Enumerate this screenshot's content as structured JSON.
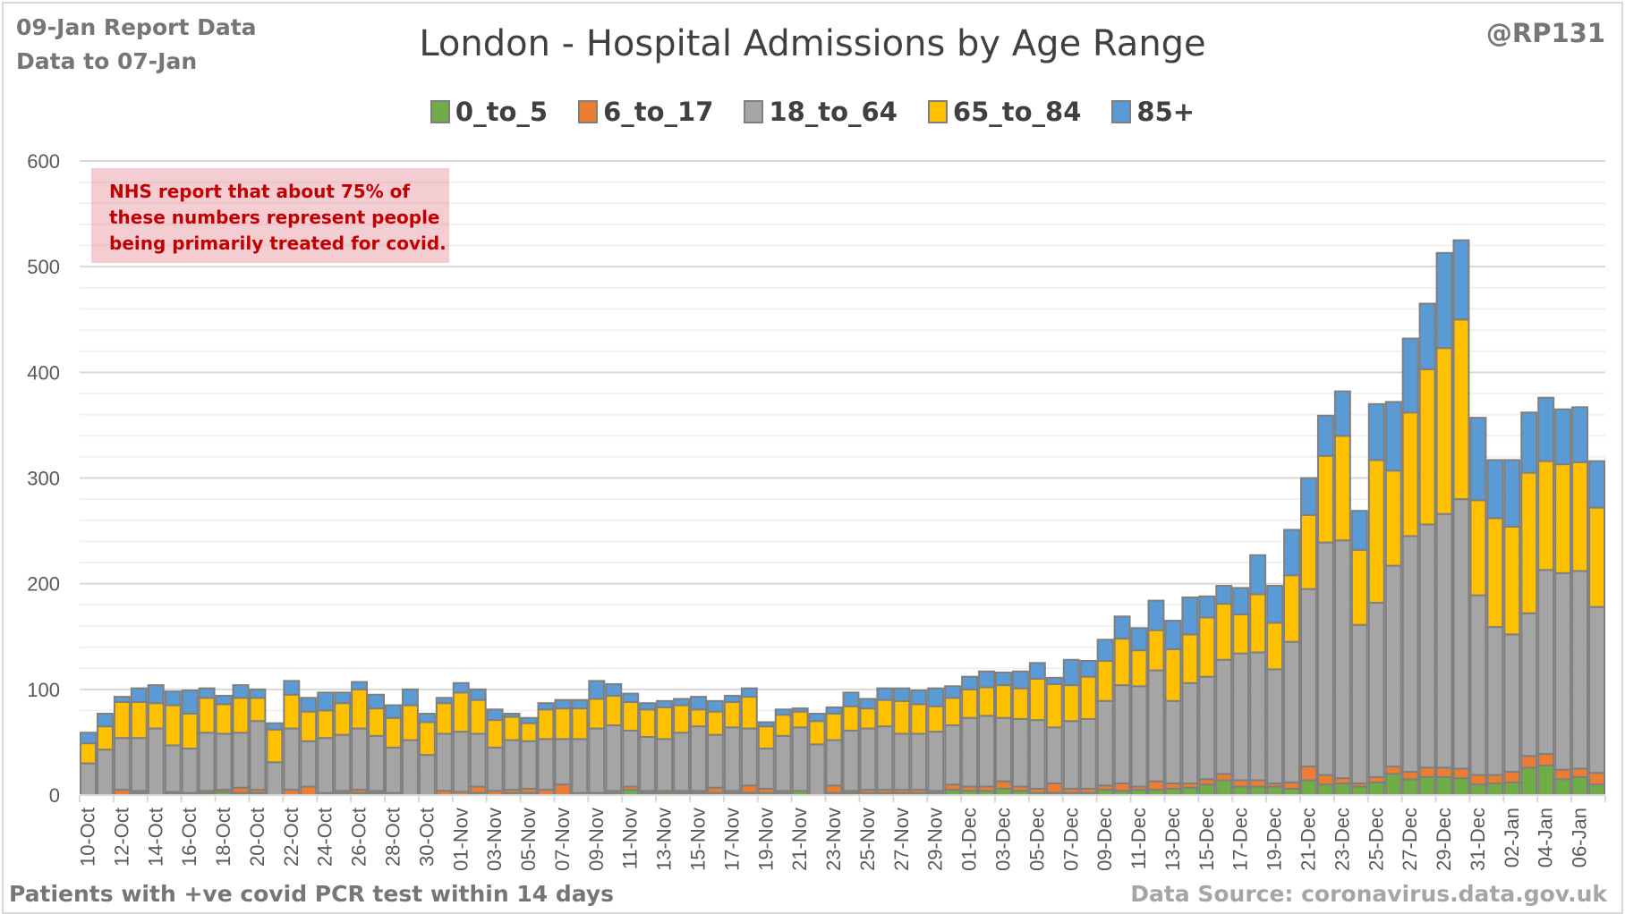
{
  "header": {
    "report_date": "09-Jan Report Data",
    "data_to": "Data to 07-Jan",
    "handle": "@RP131"
  },
  "footer": {
    "left_note": "Patients with  +ve covid PCR test within 14 days",
    "source": "Data Source: coronavirus.data.gov.uk"
  },
  "annotation": "NHS report that about 75% of these numbers represent people being primarily treated for covid.",
  "chart_data": {
    "type": "bar",
    "stacked": true,
    "title": "London - Hospital Admissions by Age Range",
    "xlabel": "",
    "ylabel": "",
    "ylim": [
      0,
      600
    ],
    "yticks": [
      0,
      100,
      200,
      300,
      400,
      500,
      600
    ],
    "grid": true,
    "legend_position": "top",
    "colors": {
      "0_to_5": "#70ad47",
      "6_to_17": "#ed7d31",
      "18_to_64": "#a5a5a5",
      "65_to_84": "#ffc000",
      "85+": "#5b9bd5"
    },
    "categories": [
      "10-Oct",
      "11-Oct",
      "12-Oct",
      "13-Oct",
      "14-Oct",
      "15-Oct",
      "16-Oct",
      "17-Oct",
      "18-Oct",
      "19-Oct",
      "20-Oct",
      "21-Oct",
      "22-Oct",
      "23-Oct",
      "24-Oct",
      "25-Oct",
      "26-Oct",
      "27-Oct",
      "28-Oct",
      "29-Oct",
      "30-Oct",
      "31-Oct",
      "01-Nov",
      "02-Nov",
      "03-Nov",
      "04-Nov",
      "05-Nov",
      "06-Nov",
      "07-Nov",
      "08-Nov",
      "09-Nov",
      "10-Nov",
      "11-Nov",
      "12-Nov",
      "13-Nov",
      "14-Nov",
      "15-Nov",
      "16-Nov",
      "17-Nov",
      "18-Nov",
      "19-Nov",
      "20-Nov",
      "21-Nov",
      "22-Nov",
      "23-Nov",
      "24-Nov",
      "25-Nov",
      "26-Nov",
      "27-Nov",
      "28-Nov",
      "29-Nov",
      "30-Nov",
      "01-Dec",
      "02-Dec",
      "03-Dec",
      "04-Dec",
      "05-Dec",
      "06-Dec",
      "07-Dec",
      "08-Dec",
      "09-Dec",
      "10-Dec",
      "11-Dec",
      "12-Dec",
      "13-Dec",
      "14-Dec",
      "15-Dec",
      "16-Dec",
      "17-Dec",
      "18-Dec",
      "19-Dec",
      "20-Dec",
      "21-Dec",
      "22-Dec",
      "23-Dec",
      "24-Dec",
      "25-Dec",
      "26-Dec",
      "27-Dec",
      "28-Dec",
      "29-Dec",
      "30-Dec",
      "31-Dec",
      "01-Jan",
      "02-Jan",
      "03-Jan",
      "04-Jan",
      "05-Jan",
      "06-Jan",
      "07-Jan"
    ],
    "xtick_labels": [
      "10-Oct",
      "12-Oct",
      "14-Oct",
      "16-Oct",
      "18-Oct",
      "20-Oct",
      "22-Oct",
      "24-Oct",
      "26-Oct",
      "28-Oct",
      "30-Oct",
      "01-Nov",
      "03-Nov",
      "05-Nov",
      "07-Nov",
      "09-Nov",
      "11-Nov",
      "13-Nov",
      "15-Nov",
      "17-Nov",
      "19-Nov",
      "21-Nov",
      "23-Nov",
      "25-Nov",
      "27-Nov",
      "29-Nov",
      "01-Dec",
      "03-Dec",
      "05-Dec",
      "07-Dec",
      "09-Dec",
      "11-Dec",
      "13-Dec",
      "15-Dec",
      "17-Dec",
      "19-Dec",
      "21-Dec",
      "23-Dec",
      "25-Dec",
      "27-Dec",
      "29-Dec",
      "31-Dec",
      "02-Jan",
      "04-Jan",
      "06-Jan"
    ],
    "series": [
      {
        "name": "0_to_5",
        "values": [
          0,
          0,
          0,
          2,
          0,
          2,
          2,
          2,
          3,
          2,
          2,
          0,
          0,
          0,
          2,
          2,
          2,
          2,
          0,
          0,
          0,
          0,
          0,
          2,
          0,
          2,
          2,
          0,
          0,
          0,
          0,
          2,
          5,
          2,
          2,
          2,
          2,
          2,
          2,
          2,
          2,
          2,
          4,
          0,
          2,
          2,
          2,
          2,
          2,
          2,
          2,
          5,
          4,
          4,
          6,
          4,
          2,
          2,
          2,
          2,
          5,
          4,
          5,
          5,
          6,
          7,
          10,
          14,
          8,
          8,
          8,
          6,
          14,
          10,
          11,
          8,
          12,
          20,
          15,
          17,
          17,
          16,
          10,
          11,
          12,
          26,
          28,
          15,
          17,
          10
        ]
      },
      {
        "name": "6_to_17",
        "values": [
          0,
          0,
          5,
          2,
          0,
          1,
          0,
          2,
          2,
          5,
          3,
          0,
          5,
          8,
          0,
          2,
          3,
          2,
          2,
          0,
          0,
          4,
          3,
          6,
          4,
          3,
          4,
          5,
          10,
          2,
          2,
          2,
          3,
          2,
          2,
          2,
          2,
          5,
          2,
          7,
          4,
          2,
          0,
          0,
          7,
          2,
          3,
          3,
          3,
          3,
          2,
          5,
          4,
          4,
          7,
          4,
          4,
          9,
          4,
          4,
          4,
          7,
          3,
          8,
          5,
          4,
          5,
          6,
          6,
          6,
          3,
          6,
          13,
          9,
          5,
          3,
          5,
          7,
          7,
          9,
          9,
          9,
          9,
          8,
          10,
          11,
          11,
          9,
          8,
          11
        ]
      },
      {
        "name": "18_to_64",
        "values": [
          30,
          43,
          49,
          50,
          63,
          44,
          42,
          55,
          53,
          52,
          65,
          31,
          58,
          43,
          52,
          53,
          58,
          52,
          43,
          52,
          38,
          54,
          57,
          50,
          41,
          47,
          45,
          48,
          43,
          51,
          61,
          62,
          53,
          51,
          49,
          55,
          61,
          50,
          60,
          54,
          38,
          52,
          60,
          48,
          43,
          57,
          58,
          60,
          53,
          53,
          56,
          56,
          65,
          67,
          60,
          64,
          65,
          53,
          64,
          66,
          80,
          93,
          95,
          105,
          78,
          95,
          97,
          108,
          120,
          121,
          108,
          133,
          168,
          220,
          225,
          150,
          165,
          190,
          223,
          230,
          240,
          255,
          170,
          140,
          130,
          135,
          174,
          186,
          187,
          157
        ]
      },
      {
        "name": "65_to_84",
        "values": [
          19,
          22,
          34,
          34,
          24,
          38,
          33,
          33,
          28,
          33,
          22,
          31,
          32,
          28,
          26,
          30,
          37,
          26,
          28,
          33,
          31,
          29,
          37,
          32,
          26,
          22,
          17,
          28,
          29,
          29,
          28,
          28,
          27,
          26,
          30,
          26,
          16,
          22,
          24,
          30,
          21,
          20,
          15,
          22,
          25,
          23,
          19,
          25,
          31,
          28,
          24,
          26,
          27,
          27,
          31,
          29,
          39,
          41,
          34,
          40,
          38,
          44,
          34,
          38,
          49,
          46,
          56,
          53,
          37,
          55,
          44,
          63,
          70,
          82,
          99,
          71,
          135,
          90,
          117,
          147,
          157,
          170,
          90,
          103,
          102,
          133,
          103,
          103,
          103,
          94
        ]
      },
      {
        "name": "85+",
        "values": [
          10,
          12,
          5,
          13,
          17,
          13,
          22,
          9,
          8,
          12,
          8,
          6,
          13,
          13,
          17,
          10,
          7,
          13,
          12,
          15,
          8,
          5,
          9,
          10,
          10,
          3,
          5,
          6,
          8,
          8,
          17,
          11,
          8,
          6,
          6,
          6,
          12,
          10,
          6,
          8,
          4,
          5,
          3,
          7,
          6,
          13,
          9,
          11,
          12,
          13,
          17,
          11,
          12,
          15,
          12,
          16,
          15,
          6,
          24,
          15,
          20,
          21,
          21,
          28,
          27,
          35,
          20,
          17,
          25,
          37,
          35,
          43,
          35,
          38,
          42,
          37,
          53,
          65,
          70,
          62,
          90,
          75,
          78,
          55,
          63,
          57,
          60,
          52,
          52,
          44
        ]
      }
    ]
  }
}
